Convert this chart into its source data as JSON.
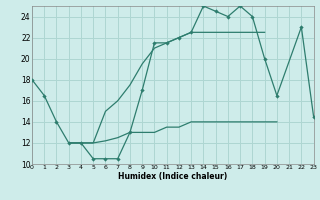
{
  "xlabel": "Humidex (Indice chaleur)",
  "background_color": "#ceecea",
  "grid_color": "#aed6d2",
  "line_color": "#2e7d6e",
  "x_min": 0,
  "x_max": 23,
  "y_min": 10,
  "y_max": 25,
  "x_ticks": [
    0,
    1,
    2,
    3,
    4,
    5,
    6,
    7,
    8,
    9,
    10,
    11,
    12,
    13,
    14,
    15,
    16,
    17,
    18,
    19,
    20,
    21,
    22,
    23
  ],
  "y_ticks": [
    10,
    12,
    14,
    16,
    18,
    20,
    22,
    24
  ],
  "line1_x": [
    0,
    1,
    2,
    3,
    4,
    5,
    6,
    7,
    8,
    9,
    10,
    11,
    12,
    13,
    14,
    15,
    16,
    17,
    18,
    19,
    20,
    22,
    23
  ],
  "line1_y": [
    18,
    16.5,
    14,
    12,
    12,
    10.5,
    10.5,
    10.5,
    13,
    17,
    21.5,
    21.5,
    22,
    22.5,
    25,
    24.5,
    24,
    25,
    24,
    20,
    16.5,
    23,
    14.5
  ],
  "line2_x": [
    3,
    5,
    6,
    7,
    8,
    9,
    10,
    11,
    12,
    13,
    14,
    15,
    16,
    17,
    18,
    19,
    20
  ],
  "line2_y": [
    12,
    12,
    12.2,
    12.5,
    13,
    13,
    13,
    13.5,
    13.5,
    14,
    14,
    14,
    14,
    14,
    14,
    14,
    14
  ],
  "line3_x": [
    3,
    5,
    6,
    7,
    8,
    9,
    10,
    11,
    12,
    13,
    14,
    15,
    16,
    17,
    18,
    19
  ],
  "line3_y": [
    12,
    12,
    15,
    16,
    17.5,
    19.5,
    21,
    21.5,
    22,
    22.5,
    22.5,
    22.5,
    22.5,
    22.5,
    22.5,
    22.5
  ]
}
